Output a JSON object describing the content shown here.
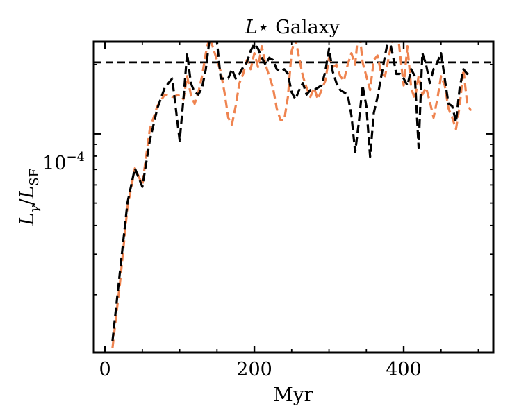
{
  "chart_data": {
    "type": "line",
    "title": "L⋆ Galaxy",
    "title_prefix": "L",
    "title_suffix": "⋆ Galaxy",
    "xlabel": "Myr",
    "ylabel_main": "Lγ/LSF",
    "ylabel_parts": {
      "l1": "L",
      "sub1": "γ",
      "slash": "/",
      "l2": "L",
      "sub2": "SF"
    },
    "xlim": [
      -15,
      520
    ],
    "ylim_log10": [
      -4.95,
      -3.6
    ],
    "xticks": [
      0,
      200,
      400
    ],
    "xtick_labels": [
      "0",
      "200",
      "400"
    ],
    "xminor_step": 50,
    "ytick_label": {
      "base": "10",
      "exponent": "−4",
      "log10": -4
    },
    "yminor_log10": [
      -4.699,
      -4.523,
      -4.398,
      -4.301,
      -4.222,
      -4.155,
      -4.097,
      -4.046,
      -3.699
    ],
    "reference_line": {
      "log10": -3.69,
      "color": "#000000",
      "style": "dashed"
    },
    "series": [
      {
        "name": "orange",
        "color": "#ef8450",
        "style": "dashed",
        "x": [
          10,
          20,
          30,
          40,
          50,
          60,
          70,
          80,
          90,
          100,
          105,
          110,
          115,
          120,
          125,
          130,
          135,
          140,
          145,
          150,
          155,
          160,
          165,
          170,
          175,
          180,
          185,
          190,
          195,
          200,
          205,
          210,
          215,
          220,
          225,
          230,
          235,
          240,
          245,
          250,
          255,
          260,
          265,
          270,
          275,
          280,
          285,
          290,
          295,
          300,
          305,
          310,
          315,
          320,
          325,
          330,
          335,
          340,
          345,
          350,
          355,
          360,
          365,
          370,
          375,
          380,
          385,
          390,
          395,
          400,
          405,
          410,
          415,
          420,
          425,
          430,
          435,
          440,
          445,
          450,
          455,
          460,
          465,
          470,
          475,
          480,
          485,
          490
        ],
        "y": [
          -4.93,
          -4.65,
          -4.32,
          -4.15,
          -4.22,
          -3.98,
          -3.88,
          -3.83,
          -3.84,
          -3.83,
          -3.85,
          -3.75,
          -3.83,
          -3.87,
          -3.82,
          -3.75,
          -3.65,
          -3.58,
          -3.63,
          -3.68,
          -3.73,
          -3.82,
          -3.93,
          -3.96,
          -3.88,
          -3.78,
          -3.74,
          -3.68,
          -3.72,
          -3.65,
          -3.71,
          -3.62,
          -3.7,
          -3.75,
          -3.8,
          -3.89,
          -3.94,
          -3.94,
          -3.84,
          -3.64,
          -3.59,
          -3.67,
          -3.75,
          -3.8,
          -3.84,
          -3.8,
          -3.85,
          -3.81,
          -3.77,
          -3.67,
          -3.71,
          -3.7,
          -3.75,
          -3.77,
          -3.7,
          -3.65,
          -3.7,
          -3.53,
          -3.69,
          -3.75,
          -3.81,
          -3.68,
          -3.66,
          -3.74,
          -3.75,
          -3.67,
          -3.58,
          -3.5,
          -3.65,
          -3.79,
          -3.62,
          -3.8,
          -3.85,
          -3.75,
          -3.83,
          -3.8,
          -3.86,
          -3.93,
          -3.85,
          -3.75,
          -3.79,
          -3.89,
          -3.93,
          -3.98,
          -3.88,
          -3.72,
          -3.87,
          -3.9
        ]
      },
      {
        "name": "black",
        "color": "#000000",
        "style": "dashed",
        "x": [
          10,
          20,
          30,
          40,
          50,
          60,
          70,
          80,
          90,
          100,
          105,
          110,
          115,
          120,
          125,
          130,
          135,
          140,
          145,
          150,
          155,
          160,
          165,
          170,
          175,
          180,
          185,
          190,
          195,
          200,
          205,
          210,
          215,
          220,
          225,
          230,
          235,
          240,
          245,
          250,
          255,
          260,
          265,
          270,
          275,
          280,
          285,
          290,
          295,
          300,
          305,
          310,
          315,
          320,
          325,
          330,
          335,
          340,
          345,
          350,
          355,
          360,
          365,
          370,
          375,
          380,
          385,
          390,
          395,
          400,
          405,
          410,
          415,
          420,
          425,
          430,
          435,
          440,
          445,
          450,
          455,
          460,
          465,
          470,
          475,
          480,
          485,
          490
        ],
        "y": [
          -4.9,
          -4.6,
          -4.3,
          -4.15,
          -4.23,
          -4.03,
          -3.89,
          -3.8,
          -3.76,
          -4.03,
          -3.85,
          -3.65,
          -3.78,
          -3.82,
          -3.83,
          -3.8,
          -3.72,
          -3.59,
          -3.6,
          -3.6,
          -3.76,
          -3.76,
          -3.76,
          -3.72,
          -3.76,
          -3.74,
          -3.71,
          -3.69,
          -3.64,
          -3.61,
          -3.63,
          -3.67,
          -3.7,
          -3.67,
          -3.68,
          -3.72,
          -3.73,
          -3.72,
          -3.74,
          -3.82,
          -3.85,
          -3.81,
          -3.78,
          -3.83,
          -3.81,
          -3.81,
          -3.8,
          -3.79,
          -3.73,
          -3.63,
          -3.73,
          -3.78,
          -3.81,
          -3.82,
          -3.83,
          -3.92,
          -4.08,
          -3.95,
          -3.79,
          -3.88,
          -4.1,
          -3.91,
          -3.84,
          -3.75,
          -3.66,
          -3.58,
          -3.65,
          -3.74,
          -3.74,
          -3.76,
          -3.79,
          -3.72,
          -3.75,
          -4.06,
          -3.65,
          -3.7,
          -3.78,
          -3.72,
          -3.69,
          -3.65,
          -3.76,
          -3.87,
          -3.88,
          -3.95,
          -3.8,
          -3.72,
          -3.74,
          -3.73
        ]
      }
    ]
  }
}
